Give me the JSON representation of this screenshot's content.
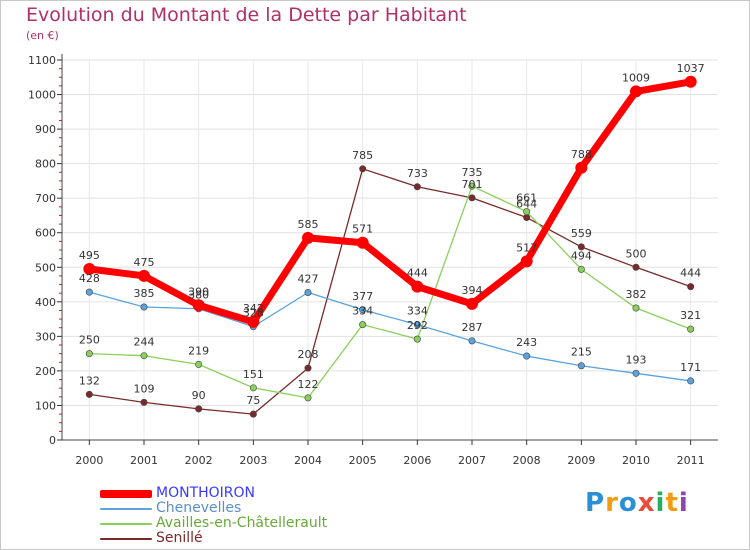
{
  "header": {
    "title": "Evolution du Montant de la Dette par Habitant",
    "unit": "(en €)"
  },
  "logo": {
    "letters": [
      "P",
      "r",
      "o",
      "x",
      "i",
      "t",
      "i"
    ],
    "colors": [
      "#2b8fd6",
      "#f39c12",
      "#2b8fd6",
      "#e74c3c",
      "#27ae60",
      "#f39c12",
      "#8e44ad"
    ]
  },
  "chart_data": {
    "type": "line",
    "x": [
      "2000",
      "2001",
      "2002",
      "2003",
      "2004",
      "2005",
      "2006",
      "2007",
      "2008",
      "2009",
      "2010",
      "2011"
    ],
    "y_ticks": [
      "0",
      "100",
      "200",
      "300",
      "400",
      "500",
      "600",
      "700",
      "800",
      "900",
      "1000",
      "1100"
    ],
    "ylim": [
      0,
      1100
    ],
    "grid": true,
    "legend_position": "bottom-left",
    "series": [
      {
        "name": "MONTHOIRON",
        "color": "#ff0000",
        "label_color": "#3a3aff",
        "values": [
          495,
          475,
          390,
          342,
          585,
          571,
          444,
          394,
          517,
          788,
          1009,
          1037
        ]
      },
      {
        "name": "Chenevelles",
        "color": "#5aa3dc",
        "label_color": "#5a8fc8",
        "values": [
          428,
          385,
          380,
          328,
          427,
          377,
          334,
          287,
          243,
          215,
          193,
          171
        ]
      },
      {
        "name": "Availles-en-Châtellerault",
        "color": "#8ad05a",
        "label_color": "#6aa83a",
        "values": [
          250,
          244,
          219,
          151,
          122,
          334,
          292,
          735,
          661,
          494,
          382,
          321
        ]
      },
      {
        "name": "Senillé",
        "color": "#7a2a2a",
        "label_color": "#7a2a2a",
        "values": [
          132,
          109,
          90,
          75,
          208,
          785,
          733,
          701,
          644,
          559,
          500,
          444
        ]
      }
    ]
  }
}
